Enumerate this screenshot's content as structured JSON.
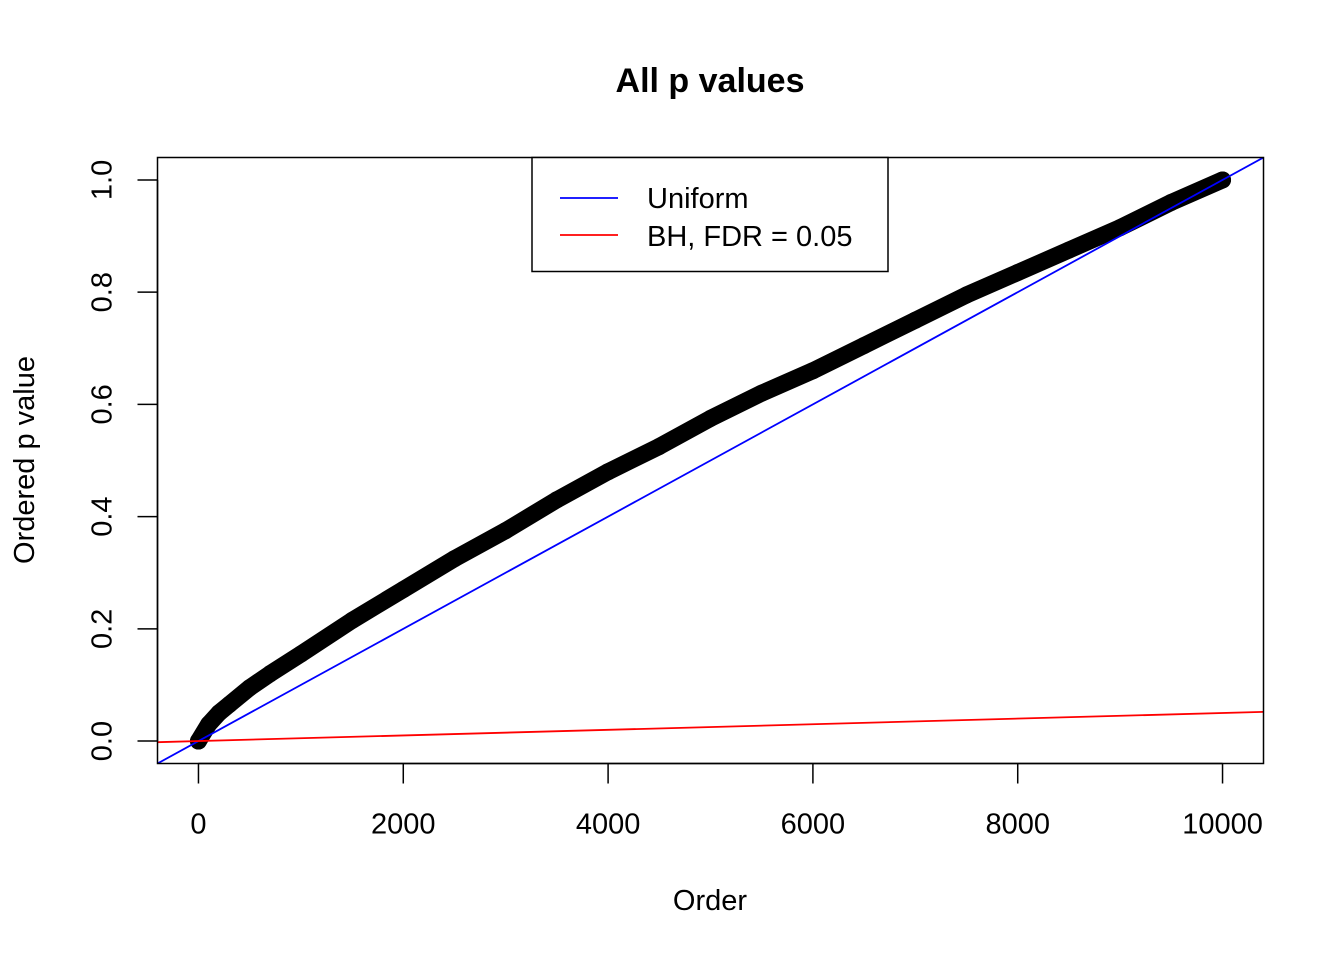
{
  "chart_data": {
    "type": "scatter",
    "title": "All p values",
    "xlabel": "Order",
    "ylabel": "Ordered p value",
    "xlim": [
      -400,
      10400
    ],
    "ylim": [
      -0.04,
      1.04
    ],
    "x_ticks": [
      0,
      2000,
      4000,
      6000,
      8000,
      10000
    ],
    "x_tick_labels": [
      "0",
      "2000",
      "4000",
      "6000",
      "8000",
      "10000"
    ],
    "y_ticks": [
      0.0,
      0.2,
      0.4,
      0.6,
      0.8,
      1.0
    ],
    "y_tick_labels": [
      "0.0",
      "0.2",
      "0.4",
      "0.6",
      "0.8",
      "1.0"
    ],
    "grid": false,
    "legend_position": "top-center",
    "series": [
      {
        "kind": "points",
        "color": "#000000",
        "x": [
          0,
          100,
          200,
          300,
          500,
          700,
          1000,
          1500,
          2000,
          2500,
          3000,
          3500,
          4000,
          4500,
          5000,
          5500,
          6000,
          6500,
          7000,
          7500,
          8000,
          8500,
          9000,
          9500,
          10000
        ],
        "y": [
          0.0,
          0.03,
          0.05,
          0.065,
          0.095,
          0.12,
          0.155,
          0.215,
          0.27,
          0.325,
          0.375,
          0.43,
          0.48,
          0.525,
          0.575,
          0.62,
          0.66,
          0.705,
          0.75,
          0.795,
          0.835,
          0.875,
          0.915,
          0.96,
          1.0
        ]
      },
      {
        "kind": "line",
        "name": "Uniform",
        "color": "#0000ff",
        "intercept": 0,
        "slope": 0.0001
      },
      {
        "kind": "line",
        "name": "BH, FDR = 0.05",
        "color": "#ff0000",
        "intercept": 0,
        "slope": 5e-06
      }
    ]
  }
}
